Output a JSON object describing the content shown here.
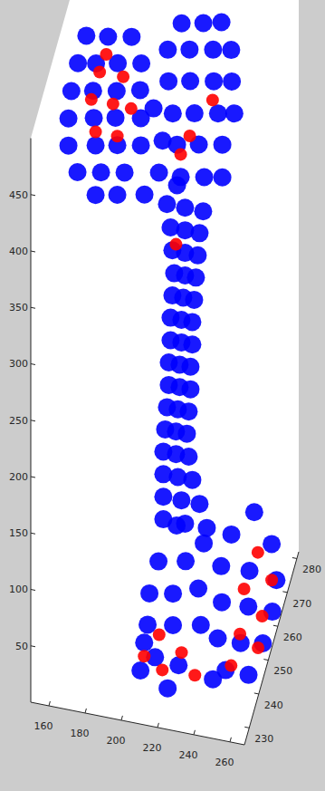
{
  "chart_data": {
    "type": "scatter3d",
    "grid": false,
    "xlim": [
      150,
      268
    ],
    "ylim": [
      225,
      282
    ],
    "zlim": [
      0,
      500
    ],
    "xticks": [
      160,
      180,
      200,
      220,
      240,
      260
    ],
    "yticks": [
      230,
      240,
      250,
      260,
      270,
      280
    ],
    "zticks": [
      50,
      100,
      150,
      200,
      250,
      300,
      350,
      400,
      450
    ],
    "series": [
      {
        "color": "#0000ff",
        "marker": "o",
        "x": [
          211,
          221,
          231,
          213,
          221,
          229,
          214,
          221,
          228,
          215,
          221,
          227,
          214,
          220,
          226,
          213,
          219,
          225,
          213,
          219,
          225,
          212,
          218,
          224,
          212,
          218,
          224,
          211,
          217,
          223,
          210,
          216,
          222,
          209,
          216,
          223,
          209,
          217,
          225,
          209,
          219,
          229,
          209,
          221,
          233,
          157,
          169,
          182,
          155,
          165,
          177,
          190,
          154,
          166,
          179,
          192,
          155,
          169,
          181,
          195,
          155,
          170,
          182,
          195,
          160,
          173,
          186,
          170,
          182,
          202,
          207,
          205,
          215,
          197,
          207,
          219,
          229,
          202,
          214,
          227,
          237,
          205,
          217,
          230,
          240,
          210,
          222,
          235,
          244,
          215,
          227,
          240,
          217,
          230,
          240,
          220,
          210,
          225,
          205,
          218,
          204,
          218,
          216,
          229,
          210,
          255,
          245,
          262,
          242,
          255,
          262,
          245,
          257,
          265,
          248,
          258,
          265,
          255,
          265,
          249,
          232,
          236,
          235,
          224,
          209
        ],
        "y": [
          252,
          252,
          252,
          252,
          252,
          252,
          252,
          252,
          252,
          252,
          252,
          252,
          252,
          252,
          252,
          252,
          252,
          252,
          252,
          252,
          252,
          252,
          252,
          252,
          252,
          252,
          252,
          252,
          252,
          252,
          252,
          252,
          252,
          252,
          252,
          252,
          252,
          252,
          252,
          252,
          252,
          252,
          252,
          252,
          252,
          270,
          270,
          270,
          265,
          265,
          265,
          265,
          260,
          260,
          260,
          260,
          255,
          255,
          255,
          255,
          255,
          255,
          255,
          255,
          255,
          255,
          255,
          255,
          255,
          255,
          255,
          255,
          255,
          255,
          275,
          275,
          275,
          270,
          270,
          270,
          270,
          265,
          265,
          265,
          265,
          260,
          260,
          260,
          260,
          255,
          255,
          255,
          255,
          255,
          255,
          245,
          245,
          245,
          245,
          245,
          245,
          245,
          230,
          230,
          230,
          260,
          255,
          265,
          250,
          255,
          270,
          245,
          250,
          260,
          235,
          240,
          250,
          230,
          235,
          228,
          245,
          240,
          245,
          228,
          228
        ],
        "z": [
          380,
          380,
          380,
          360,
          360,
          360,
          340,
          340,
          340,
          320,
          320,
          320,
          300,
          300,
          300,
          280,
          280,
          280,
          260,
          260,
          260,
          240,
          240,
          240,
          220,
          220,
          220,
          200,
          200,
          200,
          180,
          180,
          180,
          160,
          160,
          160,
          140,
          140,
          140,
          120,
          120,
          120,
          100,
          100,
          100,
          458,
          461,
          465,
          448,
          451,
          455,
          459,
          438,
          442,
          446,
          451,
          429,
          434,
          438,
          442,
          405,
          410,
          414,
          418,
          383,
          387,
          391,
          366,
          370,
          453,
          426,
          397,
          389,
          375,
          470,
          474,
          478,
          460,
          464,
          468,
          471,
          448,
          452,
          456,
          459,
          436,
          440,
          444,
          447,
          425,
          429,
          433,
          397,
          401,
          404,
          119,
          84,
          89,
          54,
          58,
          26,
          30,
          46,
          43,
          57,
          97,
          89,
          56,
          75,
          60,
          9,
          59,
          44,
          12,
          58,
          42,
          14,
          47,
          31,
          43,
          67,
          51,
          108,
          27,
          38
        ]
      },
      {
        "color": "#ff0000",
        "marker": "o",
        "x": [
          167,
          180,
          165,
          177,
          187,
          170,
          182,
          168,
          217,
          222,
          232,
          216,
          257,
          262,
          252,
          262,
          255,
          265,
          258,
          213,
          228,
          220,
          238,
          210
        ],
        "y": [
          265,
          265,
          260,
          260,
          260,
          255,
          255,
          270,
          255,
          255,
          260,
          252,
          260,
          265,
          255,
          255,
          245,
          245,
          230,
          240,
          235,
          230,
          230,
          230
        ],
        "z": [
          444,
          444,
          434,
          434,
          433,
          422,
          422,
          445,
          417,
          435,
          455,
          346,
          62,
          24,
          43,
          22,
          34,
          25,
          52,
          35,
          39,
          36,
          37,
          45
        ]
      }
    ]
  }
}
